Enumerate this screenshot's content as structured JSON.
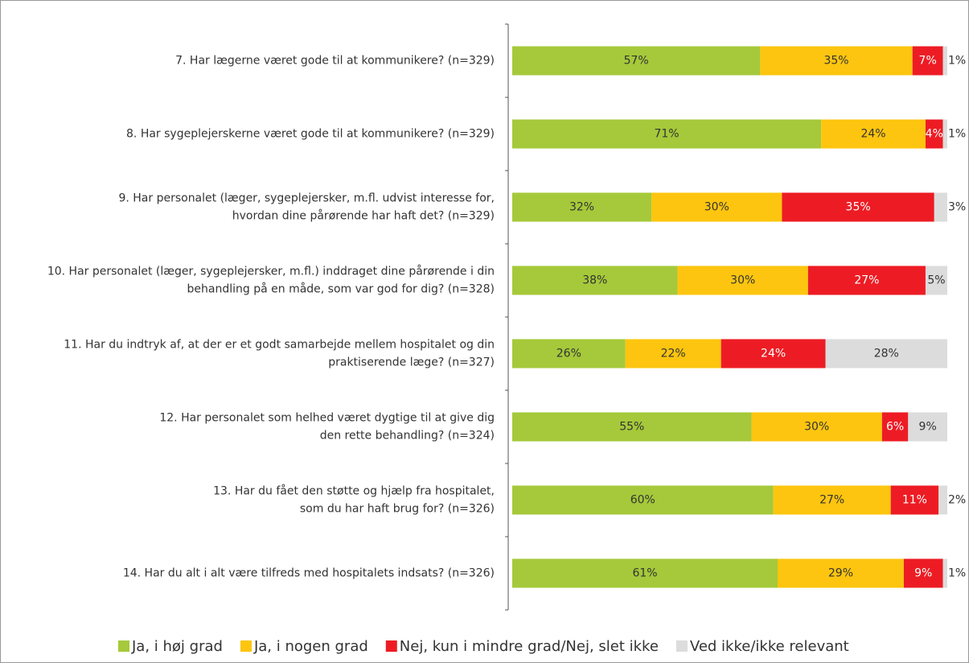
{
  "chart_data": {
    "type": "stacked_barh",
    "categories": [
      "7. Har lægerne været gode til at kommunikere? (n=329)",
      "8. Har sygeplejerskerne været gode til at kommunikere? (n=329)",
      "9. Har personalet (læger, sygeplejersker, m.fl. udvist interesse for,\nhvordan dine pårørende har haft det? (n=329)",
      "10. Har personalet (læger, sygeplejersker, m.fl.) inddraget dine pårørende i din\nbehandling på en måde, som var god for dig? (n=328)",
      "11. Har du indtryk af, at der er et godt samarbejde mellem hospitalet og din\npraktiserende læge? (n=327)",
      "12. Har personalet som helhed været dygtige til at give dig\nden rette behandling? (n=324)",
      "13. Har du fået den støtte og hjælp fra hospitalet,\nsom du har haft brug for? (n=326)",
      "14. Har du alt i alt være tilfreds med hospitalets indsats? (n=326)"
    ],
    "series": [
      {
        "name": "Ja, i høj grad",
        "color": "#a5c93a",
        "label_color": "#333333",
        "values": [
          57,
          71,
          32,
          38,
          26,
          55,
          60,
          61
        ],
        "value_labels": [
          "57%",
          "71%",
          "32%",
          "38%",
          "26%",
          "55%",
          "60%",
          "61%"
        ]
      },
      {
        "name": "Ja, i nogen grad",
        "color": "#fdc50f",
        "label_color": "#333333",
        "values": [
          35,
          24,
          30,
          30,
          22,
          30,
          27,
          29
        ],
        "value_labels": [
          "35%",
          "24%",
          "30%",
          "30%",
          "22%",
          "30%",
          "27%",
          "29%"
        ]
      },
      {
        "name": "Nej, kun i mindre grad/Nej, slet ikke",
        "color": "#ed1c24",
        "label_color": "#ffffff",
        "values": [
          7,
          4,
          35,
          27,
          24,
          6,
          11,
          9
        ],
        "value_labels": [
          "7%",
          "4%",
          "35%",
          "27%",
          "24%",
          "6%",
          "11%",
          "9%"
        ]
      },
      {
        "name": "Ved ikke/ikke relevant",
        "color": "#dcdcdc",
        "label_color": "#333333",
        "values": [
          1,
          1,
          3,
          5,
          28,
          9,
          2,
          1
        ],
        "value_labels": [
          "1%",
          "1%",
          "3%",
          "5%",
          "28%",
          "9%",
          "2%",
          "1%"
        ]
      }
    ],
    "xlim": [
      0,
      100
    ],
    "legend": "bottom"
  }
}
